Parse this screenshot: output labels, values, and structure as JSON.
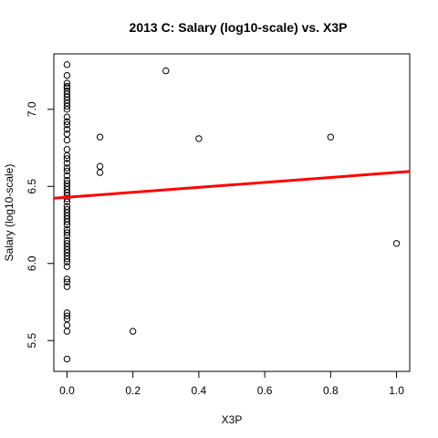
{
  "chart_data": {
    "type": "scatter",
    "title": "2013 C: Salary (log10-scale) vs. X3P",
    "xlabel": "X3P",
    "ylabel": "Salary (log10-scale)",
    "xlim": [
      -0.04,
      1.04
    ],
    "ylim": [
      5.3,
      7.36
    ],
    "x_ticks": [
      0.0,
      0.2,
      0.4,
      0.6,
      0.8,
      1.0
    ],
    "x_tick_labels": [
      "0.0",
      "0.2",
      "0.4",
      "0.6",
      "0.8",
      "1.0"
    ],
    "y_ticks": [
      5.5,
      6.0,
      6.5,
      7.0
    ],
    "y_tick_labels": [
      "5.5",
      "6.0",
      "6.5",
      "7.0"
    ],
    "grid": false,
    "points": [
      {
        "x": 0.0,
        "y": 7.29
      },
      {
        "x": 0.0,
        "y": 7.22
      },
      {
        "x": 0.0,
        "y": 7.17
      },
      {
        "x": 0.0,
        "y": 7.15
      },
      {
        "x": 0.0,
        "y": 7.14
      },
      {
        "x": 0.0,
        "y": 7.12
      },
      {
        "x": 0.0,
        "y": 7.1
      },
      {
        "x": 0.0,
        "y": 7.08
      },
      {
        "x": 0.0,
        "y": 7.06
      },
      {
        "x": 0.0,
        "y": 7.04
      },
      {
        "x": 0.0,
        "y": 7.02
      },
      {
        "x": 0.0,
        "y": 7.0
      },
      {
        "x": 0.0,
        "y": 6.95
      },
      {
        "x": 0.0,
        "y": 6.92
      },
      {
        "x": 0.0,
        "y": 6.9
      },
      {
        "x": 0.0,
        "y": 6.87
      },
      {
        "x": 0.0,
        "y": 6.84
      },
      {
        "x": 0.0,
        "y": 6.8
      },
      {
        "x": 0.0,
        "y": 6.74
      },
      {
        "x": 0.0,
        "y": 6.7
      },
      {
        "x": 0.0,
        "y": 6.68
      },
      {
        "x": 0.0,
        "y": 6.65
      },
      {
        "x": 0.0,
        "y": 6.62
      },
      {
        "x": 0.0,
        "y": 6.6
      },
      {
        "x": 0.0,
        "y": 6.57
      },
      {
        "x": 0.0,
        "y": 6.54
      },
      {
        "x": 0.0,
        "y": 6.52
      },
      {
        "x": 0.0,
        "y": 6.5
      },
      {
        "x": 0.0,
        "y": 6.48
      },
      {
        "x": 0.0,
        "y": 6.46
      },
      {
        "x": 0.0,
        "y": 6.44
      },
      {
        "x": 0.0,
        "y": 6.42
      },
      {
        "x": 0.0,
        "y": 6.4
      },
      {
        "x": 0.0,
        "y": 6.37
      },
      {
        "x": 0.0,
        "y": 6.35
      },
      {
        "x": 0.0,
        "y": 6.33
      },
      {
        "x": 0.0,
        "y": 6.31
      },
      {
        "x": 0.0,
        "y": 6.29
      },
      {
        "x": 0.0,
        "y": 6.27
      },
      {
        "x": 0.0,
        "y": 6.25
      },
      {
        "x": 0.0,
        "y": 6.22
      },
      {
        "x": 0.0,
        "y": 6.2
      },
      {
        "x": 0.0,
        "y": 6.18
      },
      {
        "x": 0.0,
        "y": 6.15
      },
      {
        "x": 0.0,
        "y": 6.13
      },
      {
        "x": 0.0,
        "y": 6.11
      },
      {
        "x": 0.0,
        "y": 6.09
      },
      {
        "x": 0.0,
        "y": 6.07
      },
      {
        "x": 0.0,
        "y": 6.05
      },
      {
        "x": 0.0,
        "y": 6.03
      },
      {
        "x": 0.0,
        "y": 6.01
      },
      {
        "x": 0.0,
        "y": 5.98
      },
      {
        "x": 0.0,
        "y": 5.9
      },
      {
        "x": 0.0,
        "y": 5.88
      },
      {
        "x": 0.0,
        "y": 5.85
      },
      {
        "x": 0.0,
        "y": 5.68
      },
      {
        "x": 0.0,
        "y": 5.66
      },
      {
        "x": 0.0,
        "y": 5.64
      },
      {
        "x": 0.0,
        "y": 5.6
      },
      {
        "x": 0.0,
        "y": 5.56
      },
      {
        "x": 0.0,
        "y": 5.38
      },
      {
        "x": 0.1,
        "y": 6.82
      },
      {
        "x": 0.1,
        "y": 6.63
      },
      {
        "x": 0.1,
        "y": 6.59
      },
      {
        "x": 0.2,
        "y": 5.56
      },
      {
        "x": 0.3,
        "y": 7.25
      },
      {
        "x": 0.4,
        "y": 6.81
      },
      {
        "x": 0.8,
        "y": 6.82
      },
      {
        "x": 1.0,
        "y": 6.13
      }
    ],
    "fit_line": {
      "x": [
        -0.04,
        1.04
      ],
      "y": [
        6.423,
        6.597
      ],
      "color": "#ff0000"
    }
  }
}
